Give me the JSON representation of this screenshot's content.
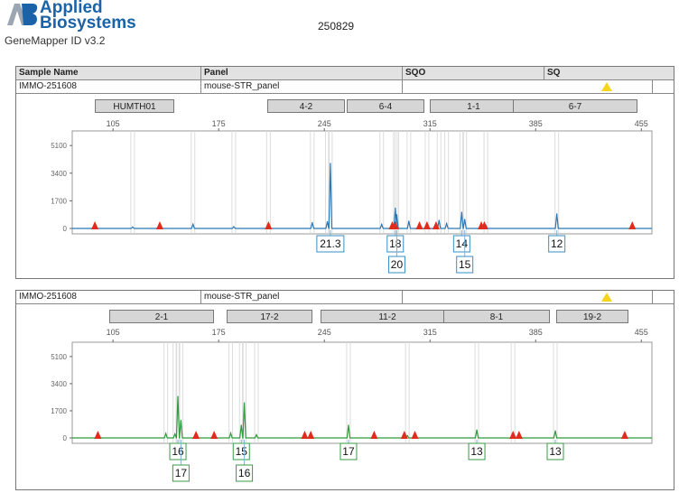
{
  "header": {
    "brand_line1": "Applied",
    "brand_line2": "Biosystems",
    "software": "GeneMapper ID v3.2",
    "run_id": "250829"
  },
  "table_header": {
    "sample_name": "Sample Name",
    "panel": "Panel",
    "sqo": "SQO",
    "sq": "SQ"
  },
  "panels": [
    {
      "sample": "IMMO-251608",
      "panel": "mouse-STR_panel",
      "color": "#2b78b5",
      "loci": [
        "HUMTH01",
        "4-2",
        "6-4",
        "1-1",
        "6-7"
      ],
      "alleles": [
        {
          "label": "21.3",
          "bp": 249,
          "row": 1
        },
        {
          "label": "18",
          "bp": 292,
          "row": 1
        },
        {
          "label": "20",
          "bp": 293,
          "row": 2
        },
        {
          "label": "14",
          "bp": 336,
          "row": 1
        },
        {
          "label": "15",
          "bp": 338,
          "row": 2
        },
        {
          "label": "12",
          "bp": 399,
          "row": 1
        }
      ]
    },
    {
      "sample": "IMMO-251608",
      "panel": "mouse-STR_panel",
      "color": "#2f9a3a",
      "loci": [
        "2-1",
        "17-2",
        "11-2",
        "8-1",
        "19-2"
      ],
      "alleles": [
        {
          "label": "16",
          "bp": 148,
          "row": 1
        },
        {
          "label": "17",
          "bp": 150,
          "row": 2
        },
        {
          "label": "15",
          "bp": 190,
          "row": 1
        },
        {
          "label": "16",
          "bp": 192,
          "row": 2
        },
        {
          "label": "17",
          "bp": 261,
          "row": 1
        },
        {
          "label": "13",
          "bp": 346,
          "row": 1
        },
        {
          "label": "13",
          "bp": 398,
          "row": 1
        }
      ]
    }
  ],
  "chart_data": [
    {
      "type": "line",
      "xlim": [
        78,
        462
      ],
      "ylim": [
        0,
        6000
      ],
      "x_ticks": [
        105,
        175,
        245,
        315,
        385,
        455
      ],
      "y_ticks": [
        0,
        1700,
        3400,
        5100
      ],
      "series": [
        {
          "color": "#2b78b5",
          "peaks": [
            {
              "x": 118,
              "y": 90
            },
            {
              "x": 158,
              "y": 260
            },
            {
              "x": 185,
              "y": 110
            },
            {
              "x": 208,
              "y": 70
            },
            {
              "x": 237,
              "y": 360
            },
            {
              "x": 247,
              "y": 420
            },
            {
              "x": 249,
              "y": 4000
            },
            {
              "x": 283,
              "y": 250
            },
            {
              "x": 292,
              "y": 1250
            },
            {
              "x": 293,
              "y": 850
            },
            {
              "x": 301,
              "y": 450
            },
            {
              "x": 313,
              "y": 360
            },
            {
              "x": 321,
              "y": 500
            },
            {
              "x": 326,
              "y": 300
            },
            {
              "x": 336,
              "y": 1000
            },
            {
              "x": 338,
              "y": 560
            },
            {
              "x": 352,
              "y": 200
            },
            {
              "x": 399,
              "y": 900
            }
          ]
        }
      ],
      "markers_bp": [
        93,
        136,
        208,
        290,
        292,
        308,
        313,
        319,
        349,
        351,
        449
      ]
    },
    {
      "type": "line",
      "xlim": [
        78,
        462
      ],
      "ylim": [
        0,
        6000
      ],
      "x_ticks": [
        105,
        175,
        245,
        315,
        385,
        455
      ],
      "y_ticks": [
        0,
        1700,
        3400,
        5100
      ],
      "series": [
        {
          "color": "#2f9a3a",
          "peaks": [
            {
              "x": 140,
              "y": 280
            },
            {
              "x": 146,
              "y": 250
            },
            {
              "x": 148,
              "y": 2600
            },
            {
              "x": 150,
              "y": 1100
            },
            {
              "x": 183,
              "y": 300
            },
            {
              "x": 190,
              "y": 800
            },
            {
              "x": 192,
              "y": 2200
            },
            {
              "x": 200,
              "y": 200
            },
            {
              "x": 261,
              "y": 800
            },
            {
              "x": 300,
              "y": 150
            },
            {
              "x": 346,
              "y": 500
            },
            {
              "x": 370,
              "y": 200
            },
            {
              "x": 398,
              "y": 450
            }
          ]
        }
      ],
      "markers_bp": [
        95,
        160,
        172,
        232,
        236,
        278,
        298,
        305,
        370,
        374,
        444
      ]
    }
  ]
}
